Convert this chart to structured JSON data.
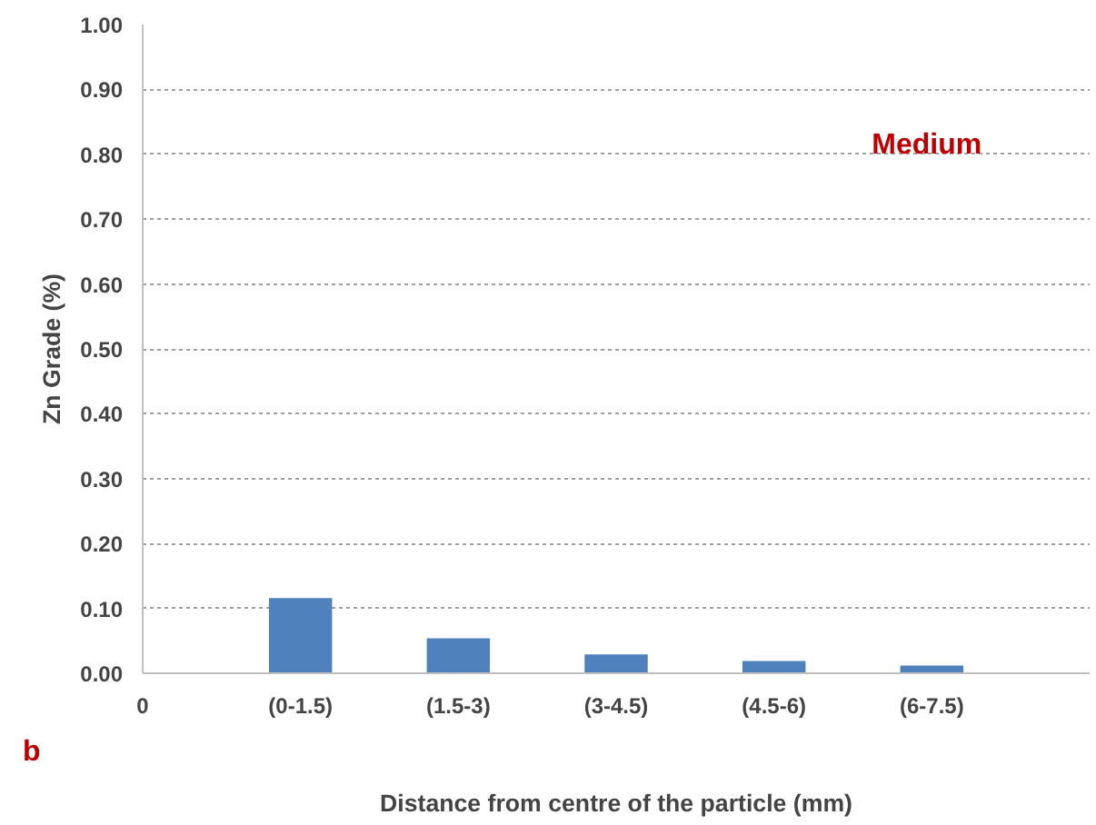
{
  "chart_data": {
    "type": "bar",
    "xlabel": "Distance from centre of the particle (mm)",
    "ylabel": "Zn Grade (%)",
    "categories": [
      "0",
      "(0-1.5)",
      "(1.5-3)",
      "(3-4.5)",
      "(4.5-6)",
      "(6-7.5)",
      null
    ],
    "values": [
      null,
      0.116,
      0.054,
      0.029,
      0.019,
      0.012,
      null
    ],
    "color": "#4f81bd",
    "ylim": [
      0,
      1
    ],
    "yticks": [
      {
        "value": 0,
        "label": "0.00"
      },
      {
        "value": 0.1,
        "label": "0.10"
      },
      {
        "value": 0.2,
        "label": "0.20"
      },
      {
        "value": 0.3,
        "label": "0.30"
      },
      {
        "value": 0.4,
        "label": "0.40"
      },
      {
        "value": 0.5,
        "label": "0.50"
      },
      {
        "value": 0.6,
        "label": "0.60"
      },
      {
        "value": 0.7,
        "label": "0.70"
      },
      {
        "value": 0.8,
        "label": "0.80"
      },
      {
        "value": 0.9,
        "label": "0.90"
      },
      {
        "value": 1,
        "label": "1.00"
      }
    ],
    "grid": "y",
    "annotations": [
      "Medium",
      "b"
    ]
  }
}
